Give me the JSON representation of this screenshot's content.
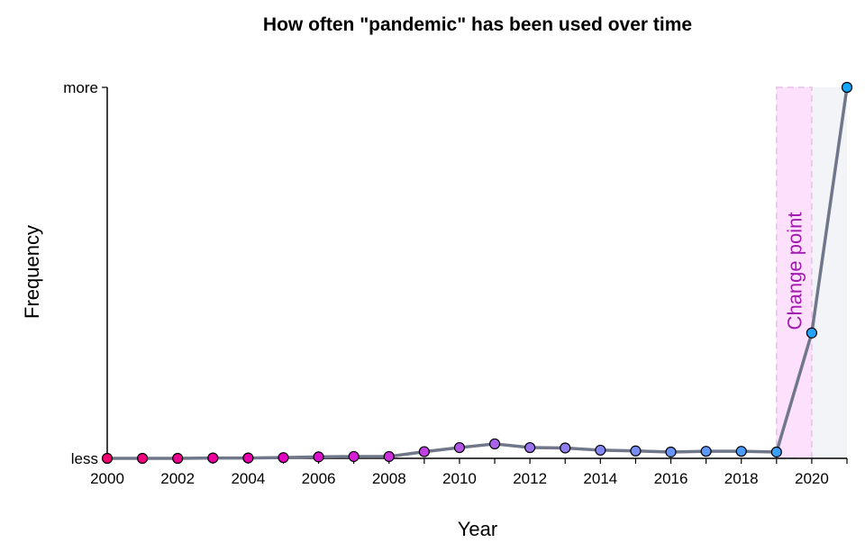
{
  "chart_data": {
    "type": "line",
    "title": "How often \"pandemic\" has been used over time",
    "xlabel": "Year",
    "ylabel": "Frequency",
    "x": [
      2000,
      2001,
      2002,
      2003,
      2004,
      2005,
      2006,
      2007,
      2008,
      2009,
      2010,
      2011,
      2012,
      2013,
      2014,
      2015,
      2016,
      2017,
      2018,
      2019,
      2020,
      2021
    ],
    "series": [
      {
        "values": [
          0.0,
          0.0,
          0.0,
          0.001,
          0.001,
          0.002,
          0.004,
          0.005,
          0.005,
          0.018,
          0.029,
          0.039,
          0.029,
          0.028,
          0.022,
          0.02,
          0.017,
          0.019,
          0.019,
          0.017,
          0.338,
          1.0
        ]
      }
    ],
    "xlim": [
      2000,
      2021
    ],
    "ylim": [
      0,
      1
    ],
    "x_ticks": [
      "2000",
      "2002",
      "2004",
      "2006",
      "2008",
      "2010",
      "2012",
      "2014",
      "2016",
      "2018",
      "2020"
    ],
    "y_ticks": [
      {
        "value": 0,
        "label": "less"
      },
      {
        "value": 1,
        "label": "more"
      }
    ],
    "grid": false,
    "line_color": "#71778a",
    "area_color": "#f3f4f7",
    "point_colors": [
      "#f5006f",
      "#f20080",
      "#ef0090",
      "#ec00a0",
      "#e800b0",
      "#e200c0",
      "#dc0ed0",
      "#d61ed8",
      "#cc2ee0",
      "#c042e4",
      "#b455e8",
      "#a865ec",
      "#9c72ef",
      "#907df2",
      "#8486f4",
      "#778df6",
      "#6a93f8",
      "#5c98fa",
      "#4c9cfb",
      "#3aa0fc",
      "#26a3fd",
      "#13a6fe"
    ],
    "annotation": {
      "label": "Change point",
      "x_start": 2019,
      "x_end": 2020,
      "fill_color": "#fde0fc",
      "border_color": "#e6c0e8",
      "text_color": "#a21ab0"
    }
  }
}
